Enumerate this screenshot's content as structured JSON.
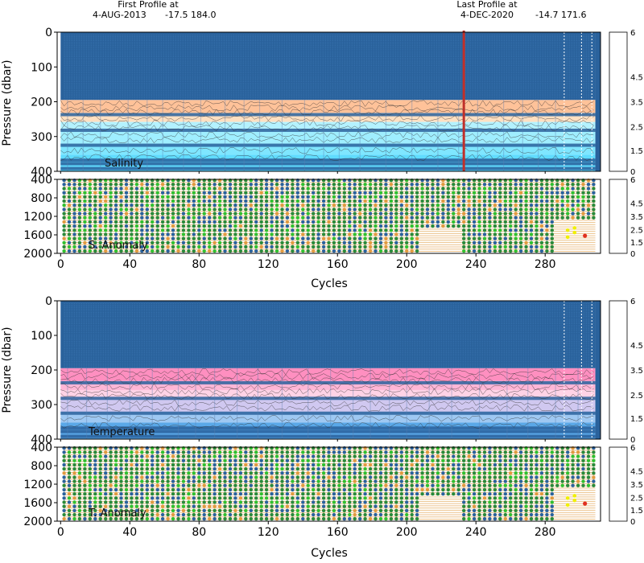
{
  "header": {
    "first_title": "First Profile at",
    "first_date": "4-AUG-2013",
    "first_coords": "-17.5  184.0",
    "last_title": "Last Profile at",
    "last_date": "4-DEC-2020",
    "last_coords": "-14.7  171.6"
  },
  "chart_data": [
    {
      "type": "heatmap",
      "label": "Salinity",
      "ylabel": "Pressure (dbar)",
      "xlabel": "",
      "x_ticks": [
        0,
        40,
        80,
        120,
        160,
        200,
        240,
        280
      ],
      "x_range": [
        -2,
        312
      ],
      "y_ticks": [
        0,
        100,
        200,
        300,
        400
      ],
      "y_range": [
        0,
        400
      ],
      "y_reversed": true,
      "colorbar_ticks": [
        "6",
        "4.5",
        "3.5",
        "2.5",
        "1.5",
        "0"
      ],
      "bands": [
        "#ffc299",
        "#ffe0c2",
        "#b4f2ff",
        "#9feeff",
        "#7fe6ff",
        "#60dcff"
      ],
      "highlight_cycle": 233
    },
    {
      "type": "scatter",
      "label": "S. Anomaly",
      "xlabel": "Cycles",
      "x_ticks": [
        0,
        40,
        80,
        120,
        160,
        200,
        240,
        280
      ],
      "x_range": [
        -2,
        312
      ],
      "y_ticks": [
        400,
        800,
        1200,
        1600,
        2000
      ],
      "y_range": [
        400,
        2000
      ],
      "y_reversed": true,
      "colorbar_ticks": [
        "6",
        "4.5",
        "3.5",
        "2.5",
        "1.5",
        "0"
      ]
    },
    {
      "type": "heatmap",
      "label": "Temperature",
      "ylabel": "Pressure (dbar)",
      "xlabel": "",
      "x_ticks": [
        0,
        40,
        80,
        120,
        160,
        200,
        240,
        280
      ],
      "x_range": [
        -2,
        312
      ],
      "y_ticks": [
        0,
        100,
        200,
        300,
        400
      ],
      "y_range": [
        0,
        400
      ],
      "y_reversed": true,
      "colorbar_ticks": [
        "6",
        "4.5",
        "3.5",
        "2.5",
        "1.5",
        "0"
      ],
      "bands": [
        "#ff8fc0",
        "#ffb6d6",
        "#ffd3e6",
        "#d0c8f0",
        "#9ec8f2",
        "#5aa8e8"
      ]
    },
    {
      "type": "scatter",
      "label": "T. Anomaly",
      "xlabel": "Cycles",
      "x_ticks": [
        0,
        40,
        80,
        120,
        160,
        200,
        240,
        280
      ],
      "x_range": [
        -2,
        312
      ],
      "y_ticks": [
        400,
        800,
        1200,
        1600,
        2000
      ],
      "y_range": [
        400,
        2000
      ],
      "y_reversed": true,
      "colorbar_ticks": [
        "6",
        "4.5",
        "3.5",
        "2.5",
        "1.5",
        "0"
      ]
    }
  ],
  "colors": {
    "deep_blue": "#2a629c",
    "anomaly_green": "#2a8a3a",
    "anomaly_orange": "#e09a40",
    "highlight_red": "#c0302a",
    "colorbar": [
      "#a00000",
      "#ff3a00",
      "#ffa000",
      "#f0f000",
      "#a0e040",
      "#30c030",
      "#209060",
      "#2a62a0",
      "#4040e0",
      "#d040f0"
    ]
  }
}
